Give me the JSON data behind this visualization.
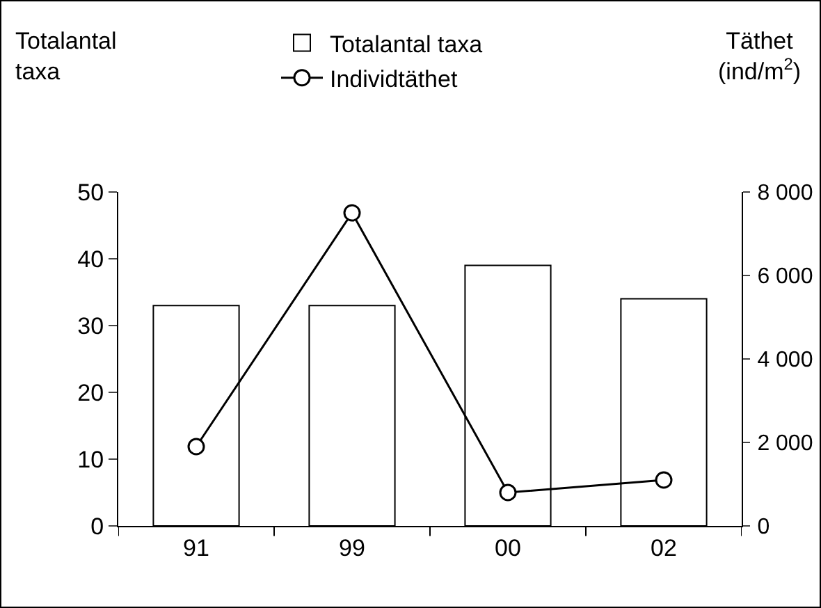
{
  "chart_data": {
    "type": "bar",
    "categories": [
      "91",
      "99",
      "00",
      "02"
    ],
    "series": [
      {
        "name": "Totalantal taxa",
        "color": "#ffffff",
        "values": [
          33,
          33,
          39,
          34
        ]
      },
      {
        "name": "Individtäthet",
        "type": "line",
        "axis": "y2",
        "color": "#000000",
        "values": [
          1900,
          7500,
          800,
          1100
        ]
      }
    ],
    "ylabel": "Totalantal taxa",
    "y2label": "Täthet (ind/m$^{2}$)",
    "ylim": [
      0,
      50
    ],
    "yticks": [
      0,
      10,
      20,
      30,
      40,
      50
    ],
    "y2lim": [
      0,
      8000
    ],
    "y2ticks": [
      0,
      {
        "value": 2000,
        "label": "2 000"
      },
      {
        "value": 4000,
        "label": "4 000"
      },
      {
        "value": 6000,
        "label": "6 000"
      },
      {
        "value": 8000,
        "label": "8 000"
      }
    ],
    "grid": false,
    "legend": "top",
    "marker": "circle",
    "line_style": "solid"
  }
}
